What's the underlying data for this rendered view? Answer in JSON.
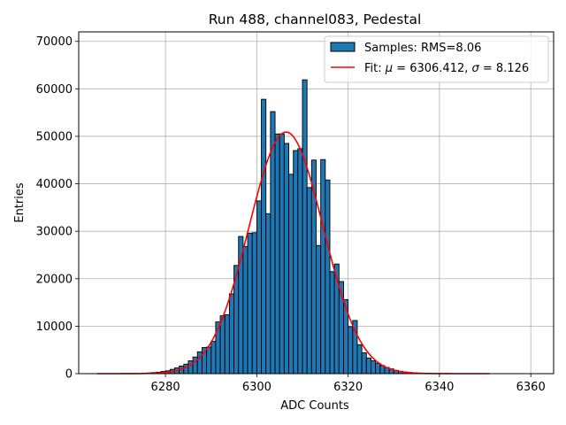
{
  "chart_data": {
    "type": "bar",
    "title": "Run 488, channel083, Pedestal",
    "xlabel": "ADC Counts",
    "ylabel": "Entries",
    "xlim": [
      6261,
      6365
    ],
    "ylim": [
      0,
      72000
    ],
    "xticks": [
      6280,
      6300,
      6320,
      6340,
      6360
    ],
    "yticks": [
      0,
      10000,
      20000,
      30000,
      40000,
      50000,
      60000,
      70000
    ],
    "grid": true,
    "legend_position": "top-right",
    "histogram": {
      "name": "Samples: RMS=8.06",
      "color": "#1f77b4",
      "bin_width": 1,
      "bin_left_edges": [
        6276,
        6277,
        6278,
        6279,
        6280,
        6281,
        6282,
        6283,
        6284,
        6285,
        6286,
        6287,
        6288,
        6289,
        6290,
        6291,
        6292,
        6293,
        6294,
        6295,
        6296,
        6297,
        6298,
        6299,
        6300,
        6301,
        6302,
        6303,
        6304,
        6305,
        6306,
        6307,
        6308,
        6309,
        6310,
        6311,
        6312,
        6313,
        6314,
        6315,
        6316,
        6317,
        6318,
        6319,
        6320,
        6321,
        6322,
        6323,
        6324,
        6325,
        6326,
        6327,
        6328,
        6329,
        6330,
        6331,
        6332,
        6333,
        6334,
        6335,
        6336,
        6337
      ],
      "counts": [
        150,
        220,
        300,
        450,
        600,
        900,
        1200,
        1600,
        2000,
        2700,
        3500,
        4600,
        5500,
        5600,
        6800,
        10900,
        12200,
        12400,
        16800,
        22800,
        28900,
        26800,
        29600,
        29700,
        36400,
        57800,
        33700,
        55200,
        50500,
        50500,
        48500,
        42000,
        47000,
        47400,
        61900,
        39200,
        45000,
        27000,
        45100,
        40800,
        21500,
        23100,
        19400,
        15600,
        9900,
        11200,
        6100,
        4400,
        3300,
        2700,
        2200,
        1700,
        1300,
        1000,
        700,
        500,
        350,
        250,
        180,
        120,
        80,
        50
      ]
    },
    "fit": {
      "name_prefix": "Fit: ",
      "mu_symbol": "μ",
      "mu_text": " = 6306.412, ",
      "sigma_symbol": "σ",
      "sigma_text": " = 8.126",
      "mu": 6306.412,
      "sigma": 8.126,
      "amplitude": 50900,
      "x_range": [
        6265,
        6351
      ],
      "color": "#ff0000"
    }
  }
}
